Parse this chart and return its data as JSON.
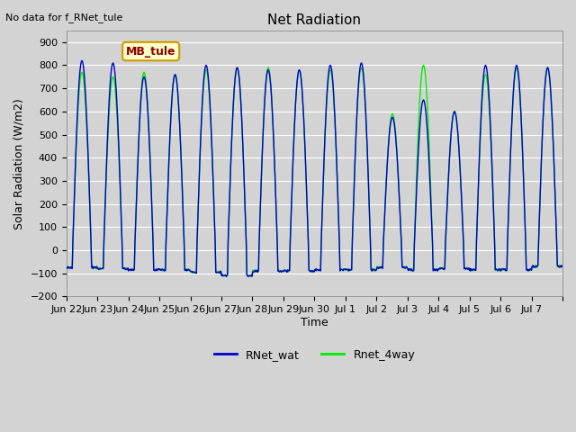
{
  "title": "Net Radiation",
  "subtitle": "No data for f_RNet_tule",
  "ylabel": "Solar Radiation (W/m2)",
  "xlabel": "Time",
  "ylim": [
    -200,
    950
  ],
  "yticks": [
    -200,
    -100,
    0,
    100,
    200,
    300,
    400,
    500,
    600,
    700,
    800,
    900
  ],
  "bg_color": "#d3d3d3",
  "line1_color": "#0000cc",
  "line2_color": "#00ee00",
  "legend_label1": "RNet_wat",
  "legend_label2": "Rnet_4way",
  "annotation_text": "MB_tule",
  "annotation_bg": "#ffffcc",
  "annotation_border": "#cc9900",
  "annotation_text_color": "#8b0000",
  "n_days": 16,
  "base_peak1": [
    820,
    810,
    750,
    760,
    800,
    790,
    780,
    780,
    800,
    810,
    575,
    650,
    600,
    800,
    800,
    790
  ],
  "base_peak2": [
    770,
    750,
    770,
    760,
    780,
    790,
    790,
    780,
    780,
    790,
    590,
    800,
    600,
    760,
    790,
    790
  ],
  "base_trough": [
    -75,
    -80,
    -85,
    -85,
    -95,
    -110,
    -90,
    -90,
    -85,
    -85,
    -75,
    -85,
    -80,
    -85,
    -85,
    -70
  ],
  "x_tick_labels": [
    "Jun 22",
    "Jun 23",
    "Jun 24",
    "Jun 25",
    "Jun 26",
    "Jun 27",
    "Jun 28",
    "Jun 29",
    "Jun 30",
    "Jul 1",
    "Jul 2",
    "Jul 3",
    "Jul 4",
    "Jul 5",
    "Jul 6",
    "Jul 7"
  ]
}
